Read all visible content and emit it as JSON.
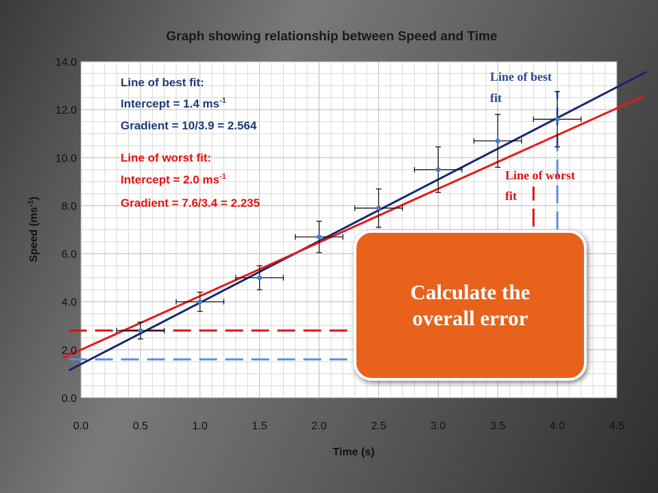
{
  "chart_data": {
    "type": "scatter",
    "title": "Graph showing relationship between Speed and Time",
    "xlabel": "Time (s)",
    "ylabel": "Speed (ms",
    "ylabel_sup": "-1",
    "ylabel_close": ")",
    "xlim": [
      0,
      4.5
    ],
    "ylim": [
      0,
      14
    ],
    "x_ticks": [
      "0.0",
      "0.5",
      "1.0",
      "1.5",
      "2.0",
      "2.5",
      "3.0",
      "3.5",
      "4.0",
      "4.5"
    ],
    "y_ticks": [
      "0.0",
      "2.0",
      "4.0",
      "6.0",
      "8.0",
      "10.0",
      "12.0",
      "14.0"
    ],
    "grid": true,
    "points": [
      {
        "x": 0.5,
        "y": 2.8,
        "xerr": 0.2,
        "yerr": 0.35
      },
      {
        "x": 1.0,
        "y": 4.0,
        "xerr": 0.2,
        "yerr": 0.4
      },
      {
        "x": 1.5,
        "y": 5.0,
        "xerr": 0.2,
        "yerr": 0.5
      },
      {
        "x": 2.0,
        "y": 6.7,
        "xerr": 0.2,
        "yerr": 0.65
      },
      {
        "x": 2.5,
        "y": 7.9,
        "xerr": 0.2,
        "yerr": 0.8
      },
      {
        "x": 3.0,
        "y": 9.5,
        "xerr": 0.2,
        "yerr": 0.95
      },
      {
        "x": 3.5,
        "y": 10.7,
        "xerr": 0.2,
        "yerr": 1.1
      },
      {
        "x": 4.0,
        "y": 11.6,
        "xerr": 0.2,
        "yerr": 1.15
      }
    ],
    "series": [
      {
        "name": "Line of best fit",
        "color": "#14286e",
        "intercept": 1.4,
        "gradient": 2.564,
        "x_range": [
          -0.1,
          4.75
        ]
      },
      {
        "name": "Line of worst fit",
        "color": "#e81818",
        "intercept": 2.0,
        "gradient": 2.235,
        "x_range": [
          -0.15,
          4.72
        ]
      }
    ],
    "guides": [
      {
        "series": "best",
        "color": "#5b8fd8",
        "x_from": -0.1,
        "x_to": 4.0,
        "y_from": 1.6,
        "y_to": 12.8
      },
      {
        "series": "worst",
        "color": "#e01010",
        "x_from": -0.1,
        "x_to": 3.8,
        "y_from": 2.8,
        "y_to": 8.8
      }
    ],
    "annotations": {
      "best": {
        "line1": "Line of best fit:",
        "line2": "Intercept = 1.4 ms",
        "line2_sup": "-1",
        "line3": "Gradient = 10/3.9 = 2.564"
      },
      "worst": {
        "line1": "Line of worst fit:",
        "line2": "Intercept = 2.0 ms",
        "line2_sup": "-1",
        "line3": "Gradient = 7.6/3.4 = 2.235"
      }
    },
    "line_labels": {
      "best": [
        "Line of best",
        "fit"
      ],
      "worst": [
        "Line of worst",
        "fit"
      ]
    }
  },
  "callout": {
    "text": "Calculate the overall error",
    "color": "#e8621c"
  }
}
